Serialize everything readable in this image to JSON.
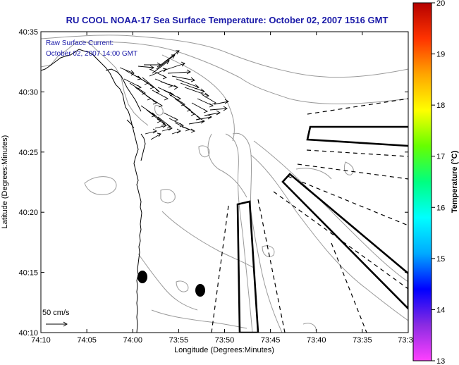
{
  "title": "RU COOL  NOAA-17  Sea Surface Temperature:  October 02, 2007 1516 GMT",
  "overlay": {
    "line1": "Raw Surface Current:",
    "line2": "October 02, 2007 14:00 GMT"
  },
  "scale_label": "50 cm/s",
  "axes": {
    "xlabel": "Longitude (Degrees:Minutes)",
    "ylabel": "Latitude (Degrees:Minutes)",
    "xticks": [
      "74:10",
      "74:05",
      "74:00",
      "73:55",
      "73:50",
      "73:45",
      "73:40",
      "73:35",
      "73:3"
    ],
    "yticks": [
      "40:35",
      "40:30",
      "40:25",
      "40:20",
      "40:15",
      "40:10"
    ]
  },
  "colorbar": {
    "label": "Temperature (°C)",
    "ticks": [
      "20",
      "19",
      "18",
      "17",
      "16",
      "15",
      "14",
      "13"
    ],
    "min": 13,
    "max": 20,
    "colors": [
      "#ff40ff",
      "#8a2be2",
      "#0000ff",
      "#00aaff",
      "#00ffff",
      "#00ff80",
      "#66ff00",
      "#ffff00",
      "#ffa500",
      "#ff3300",
      "#b40000"
    ]
  },
  "colors": {
    "title": "#1a1aa8",
    "contour": "#9a9a9a",
    "coast": "#000000"
  }
}
